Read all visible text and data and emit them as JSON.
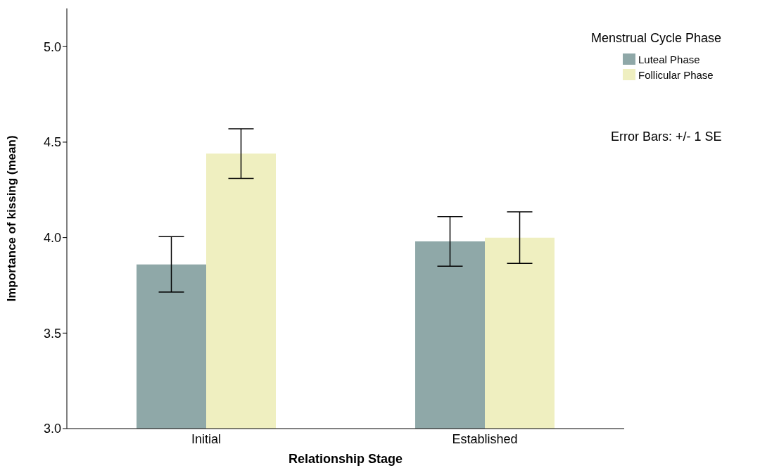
{
  "chart_data": {
    "type": "bar",
    "xlabel": "Relationship Stage",
    "ylabel": "Importance of kissing (mean)",
    "legend_title": "Menstrual Cycle Phase",
    "categories": [
      "Initial",
      "Established"
    ],
    "series": [
      {
        "name": "Luteal Phase",
        "color": "#8fa8a8",
        "values": [
          3.86,
          3.98
        ],
        "errors": [
          0.145,
          0.13
        ]
      },
      {
        "name": "Follicular Phase",
        "color": "#efefc0",
        "values": [
          4.44,
          4.0
        ],
        "errors": [
          0.13,
          0.135
        ]
      }
    ],
    "ylim": [
      3.0,
      5.2
    ],
    "yticks": [
      {
        "value": 3.0,
        "label": "3.0"
      },
      {
        "value": 3.5,
        "label": "3.5"
      },
      {
        "value": 4.0,
        "label": "4.0"
      },
      {
        "value": 4.5,
        "label": "4.5"
      },
      {
        "value": 5.0,
        "label": "5.0"
      }
    ],
    "grid": false,
    "legend": "top right",
    "annotations": [
      "Error Bars: +/- 1 SE"
    ]
  }
}
